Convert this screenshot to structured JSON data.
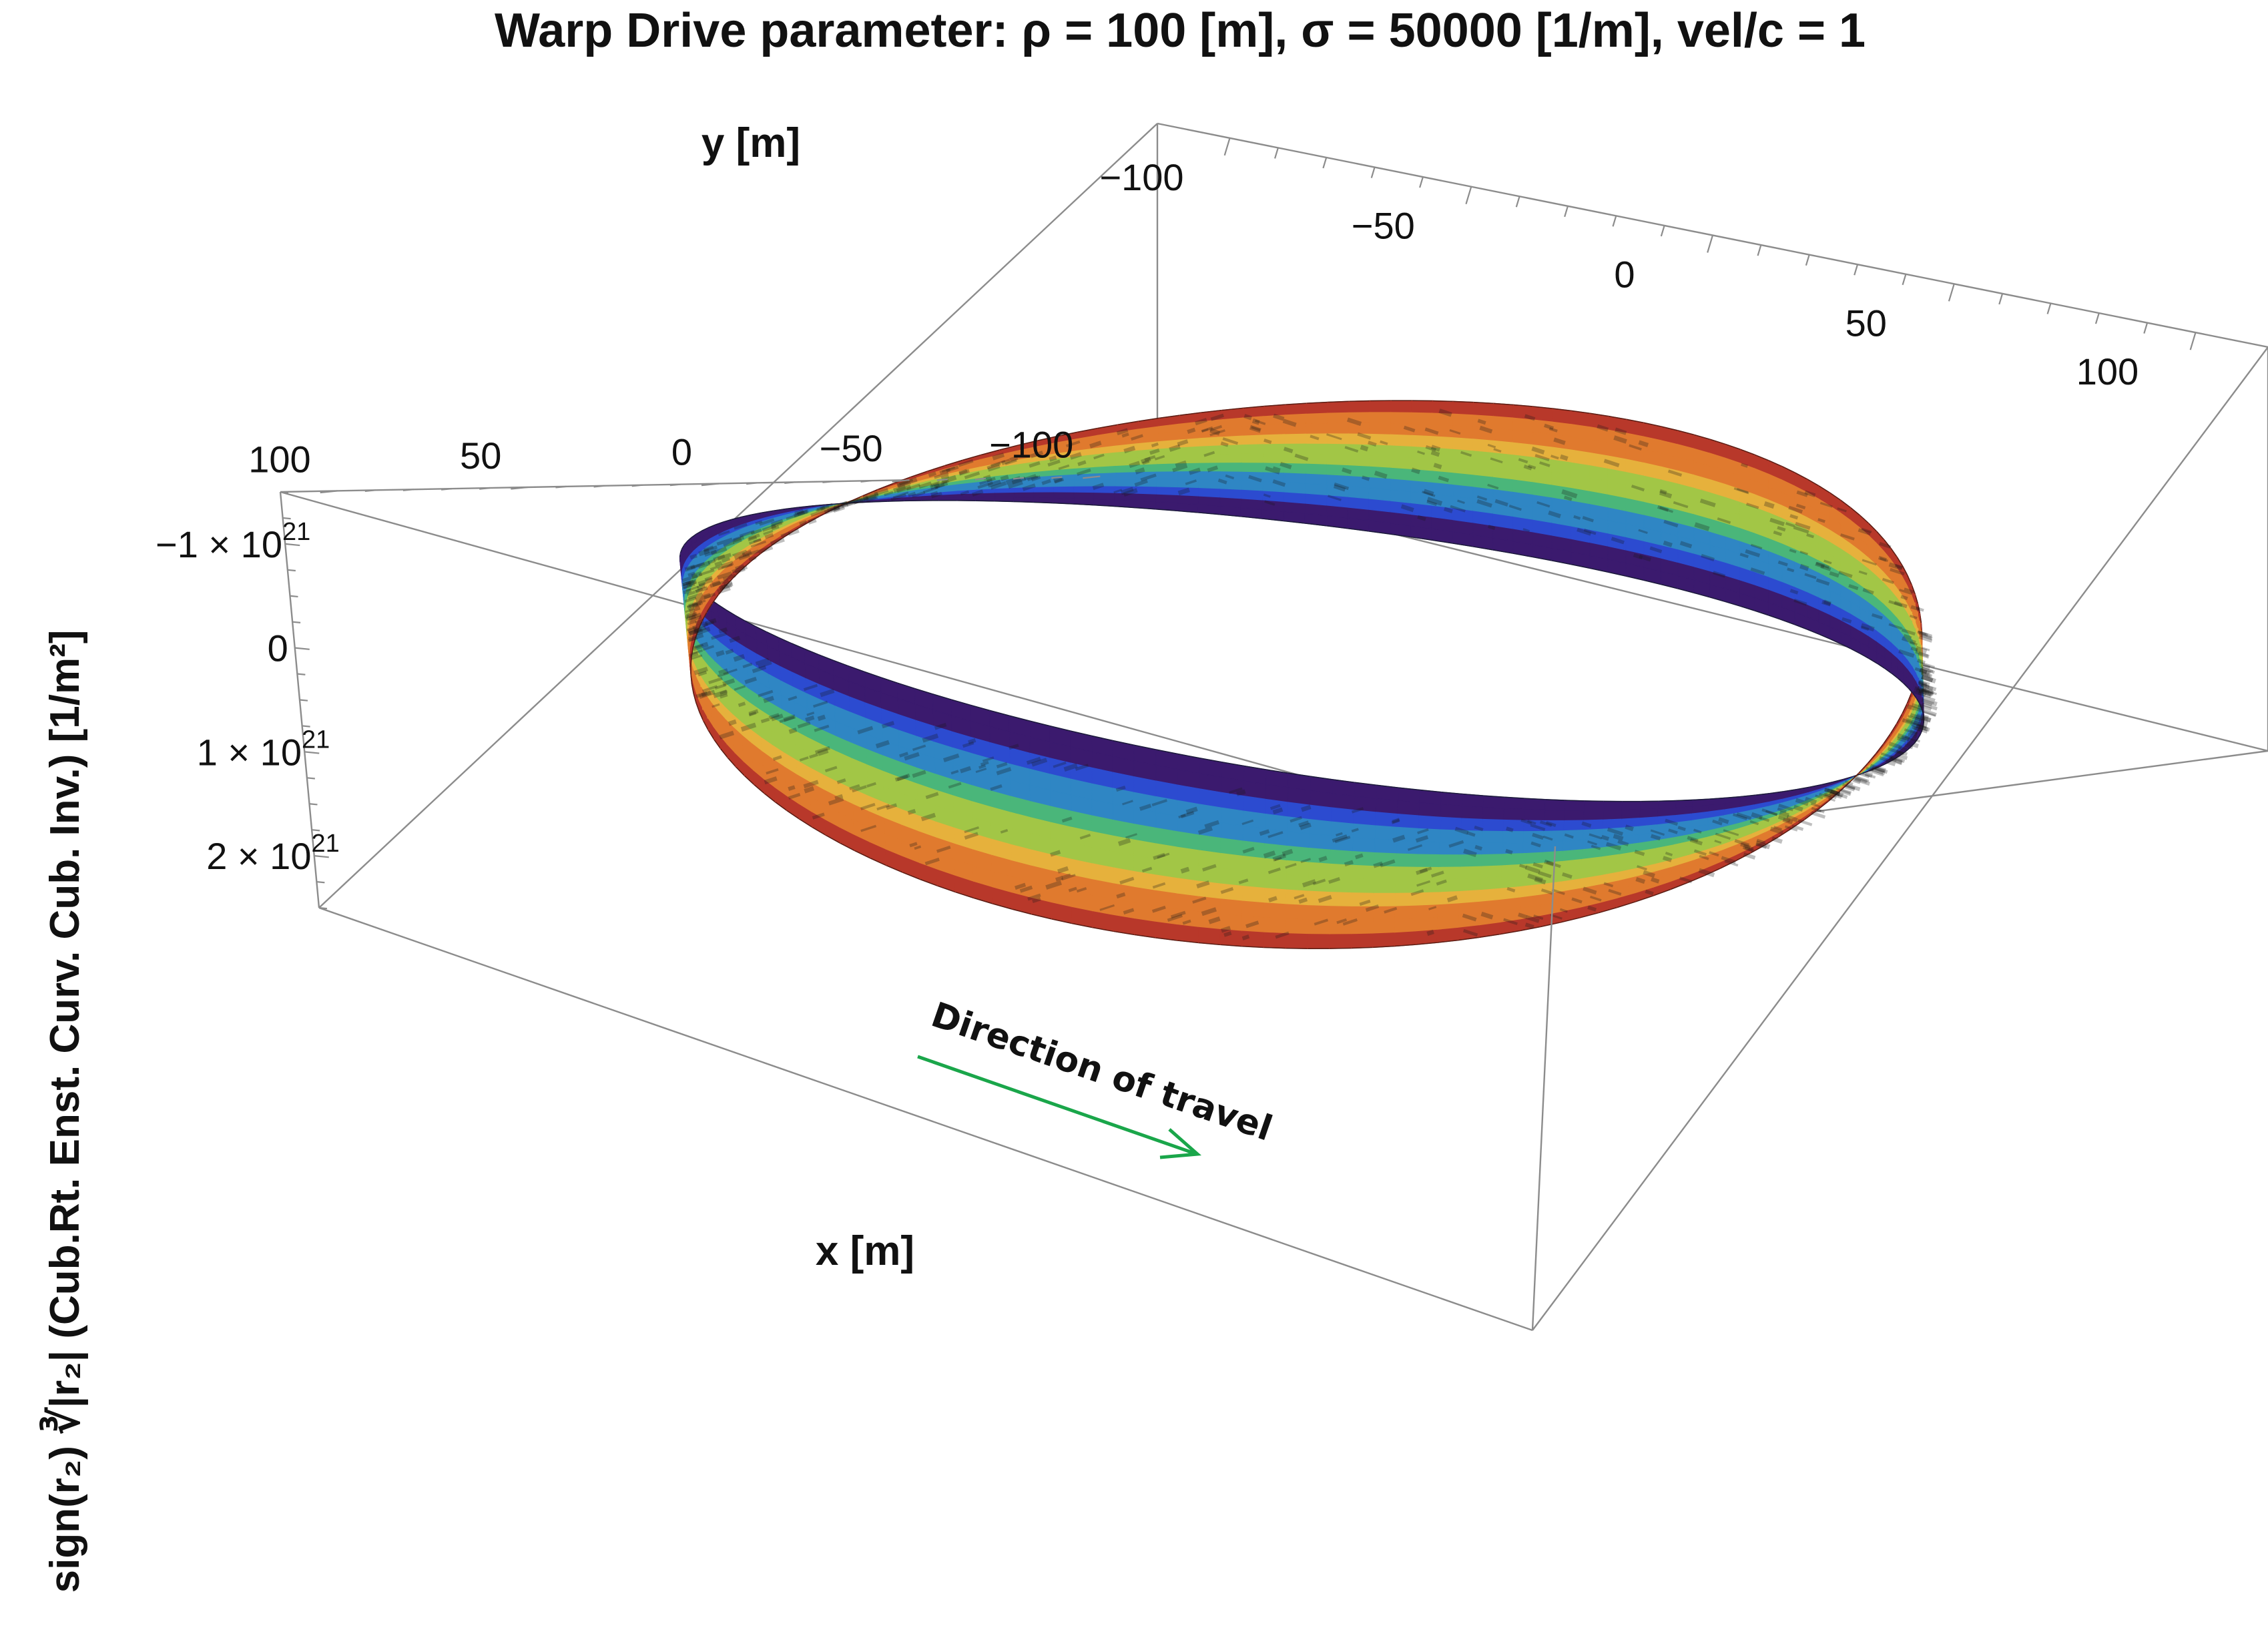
{
  "chart_data": {
    "type": "surface3d",
    "title": "Warp Drive parameter: ρ = 100 [m], σ = 50000 [1/m], vel/c = 1",
    "xlabel": "x [m]",
    "ylabel": "y [m]",
    "zlabel": "sign(r₂) ∛|r₂| (Cub.Rt. Enst. Curv. Cub. Inv.) [1/m²]",
    "x_ticks": [
      -100,
      -50,
      0,
      50,
      100
    ],
    "x_tick_labels": [
      "−100",
      "−50",
      "0",
      "50",
      "100"
    ],
    "y_ticks": [
      -100,
      -50,
      0,
      50,
      100
    ],
    "y_tick_labels": [
      "−100",
      "−50",
      "0",
      "50",
      "100"
    ],
    "z_ticks": [
      -1e+21,
      0,
      1e+21,
      2e+21
    ],
    "z_tick_labels": [
      {
        "mant": "−1 × 10",
        "exp": "21"
      },
      {
        "mant": "0",
        "exp": ""
      },
      {
        "mant": "1 × 10",
        "exp": "21"
      },
      {
        "mant": "2 × 10",
        "exp": "21"
      }
    ],
    "xlim": [
      -115,
      115
    ],
    "ylim": [
      -115,
      115
    ],
    "zlim": [
      -1.5e+21,
      2.5e+21
    ],
    "z_axis_reversed": true,
    "surface": {
      "shape": "ring",
      "ring_radius": 100,
      "z_range": [
        -1.1e+21,
        8.5e+20
      ],
      "colormap": [
        "#3b1a6e",
        "#2c4bd0",
        "#2f86c4",
        "#4ab67a",
        "#a2c646",
        "#e6b13c",
        "#e07a2e",
        "#b8382a"
      ]
    },
    "annotation": {
      "text": "Direction of travel",
      "arrow_color": "#1aa64a",
      "direction": "+x"
    }
  }
}
